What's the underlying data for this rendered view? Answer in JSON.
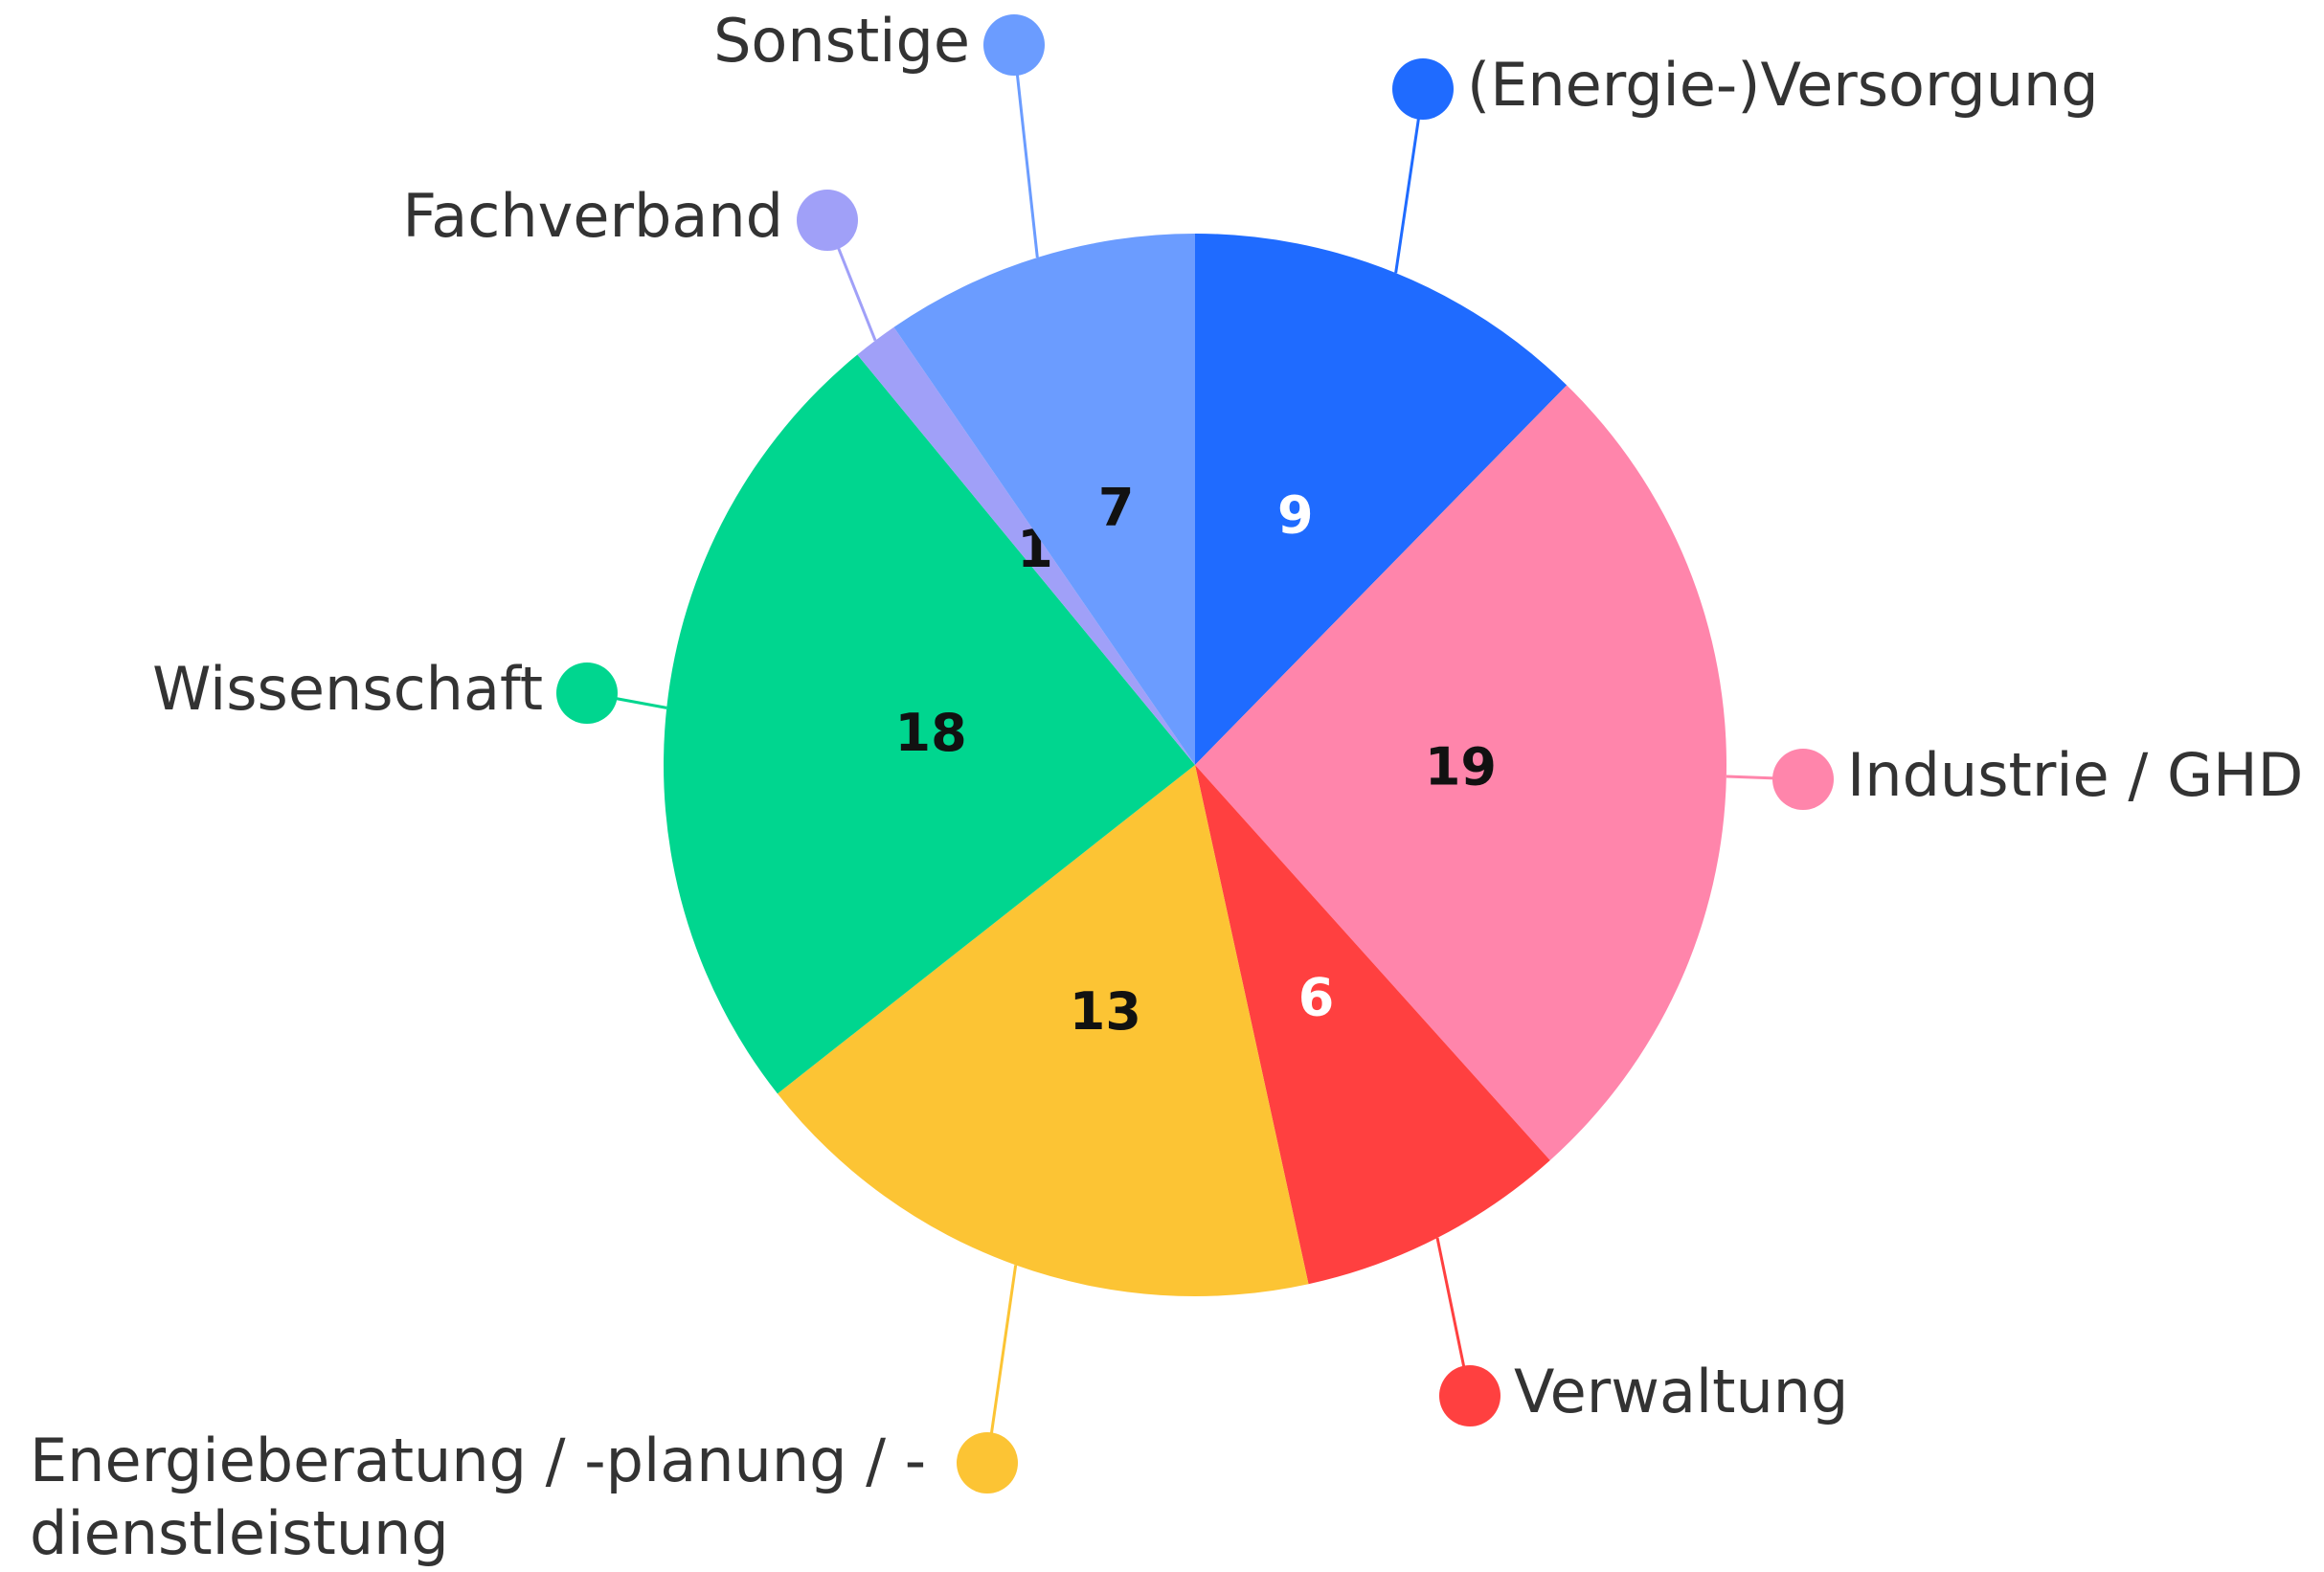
{
  "chart_data": {
    "type": "pie",
    "categories": [
      "(Energie-)Versorgung",
      "Industrie / GHD",
      "Verwaltung",
      "Energieberatung / -planung / -\ndienstleistung",
      "Wissenschaft",
      "Fachverband",
      "Sonstige"
    ],
    "values": [
      9,
      19,
      6,
      13,
      18,
      1,
      7
    ],
    "colors": [
      "#1f6bff",
      "#ff85ab",
      "#ff4040",
      "#fcc434",
      "#00d68f",
      "#a0a0f8",
      "#6b9cff"
    ]
  }
}
